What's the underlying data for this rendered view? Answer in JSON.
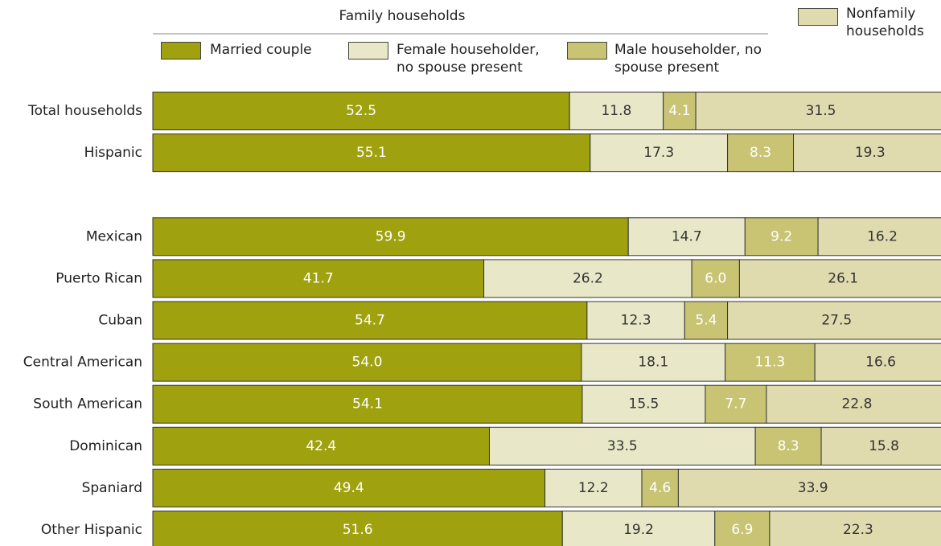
{
  "chart_data": {
    "type": "stacked_bar_horizontal",
    "legend_group_title": "Family households",
    "categories": [
      "Total households",
      "Hispanic",
      null,
      "Mexican",
      "Puerto Rican",
      "Cuban",
      "Central American",
      "South American",
      "Dominican",
      "Spaniard",
      "Other Hispanic"
    ],
    "series": [
      {
        "name": "Married couple",
        "color": "#a0a10f",
        "group": "Family households",
        "values": [
          52.5,
          55.1,
          null,
          59.9,
          41.7,
          54.7,
          54,
          54.1,
          42.4,
          49.4,
          51.6
        ],
        "value_labels": [
          "52.5",
          "55.1",
          null,
          "59.9",
          "41.7",
          "54.7",
          "54.0",
          "54.1",
          "42.4",
          "49.4",
          "51.6"
        ]
      },
      {
        "name": "Female householder, no spouse present",
        "color": "#e8e8c9",
        "group": "Family households",
        "values": [
          11.8,
          17.3,
          null,
          14.7,
          26.2,
          12.3,
          18.1,
          15.5,
          33.5,
          12.2,
          19.2
        ],
        "value_labels": [
          "11.8",
          "17.3",
          null,
          "14.7",
          "26.2",
          "12.3",
          "18.1",
          "15.5",
          "33.5",
          "12.2",
          "19.2"
        ]
      },
      {
        "name": "Male householder, no spouse present",
        "color": "#c8c474",
        "group": "Family households",
        "values": [
          4.1,
          8.3,
          null,
          9.2,
          6,
          5.4,
          11.3,
          7.7,
          8.3,
          4.6,
          6.9
        ],
        "value_labels": [
          "4.1",
          "8.3",
          null,
          "9.2",
          "6.0",
          "5.4",
          "11.3",
          "7.7",
          "8.3",
          "4.6",
          "6.9"
        ]
      },
      {
        "name": "Nonfamily households",
        "color": "#e0dbaf",
        "values": [
          31.5,
          19.3,
          null,
          16.2,
          26.1,
          27.5,
          16.6,
          22.8,
          15.8,
          33.9,
          22.3
        ],
        "value_labels": [
          "31.5",
          "19.3",
          null,
          "16.2",
          "26.1",
          "27.5",
          "16.6",
          "22.8",
          "15.8",
          "33.9",
          "22.3"
        ]
      }
    ]
  }
}
